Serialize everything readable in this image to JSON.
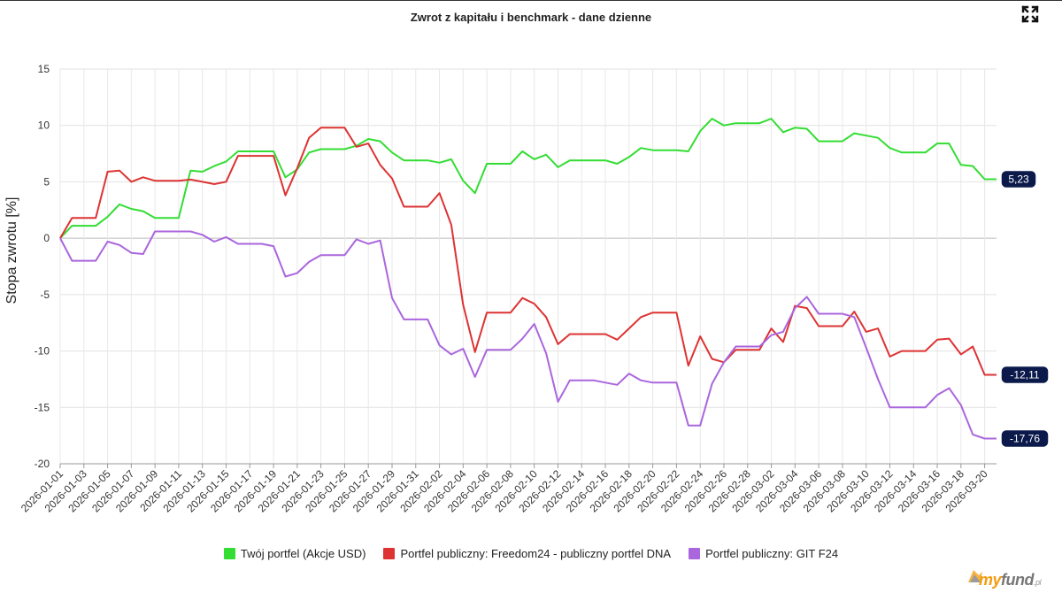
{
  "title": "Zwrot z kapitału i benchmark - dane dzienne",
  "brand": {
    "my": "my",
    "fund": "fund",
    "suffix": ".pl"
  },
  "chart_data": {
    "type": "line",
    "title": "Zwrot z kapitału i benchmark - dane dzienne",
    "ylabel": "Stopa zwrotu [%]",
    "xlabel": "",
    "ylim": [
      -20,
      15
    ],
    "yticks": [
      15,
      10,
      5,
      0,
      -5,
      -10,
      -15,
      -20
    ],
    "ytick_labels": [
      "15",
      "10",
      "5",
      "0",
      "-5",
      "-10",
      "-15",
      "-20"
    ],
    "grid": true,
    "legend_position": "bottom",
    "x_labels": [
      "2026-01-01",
      "2026-01-03",
      "2026-01-05",
      "2026-01-07",
      "2026-01-09",
      "2026-01-11",
      "2026-01-13",
      "2026-01-15",
      "2026-01-17",
      "2026-01-19",
      "2026-01-21",
      "2026-01-23",
      "2026-01-25",
      "2026-01-27",
      "2026-01-29",
      "2026-01-31",
      "2026-02-02",
      "2026-02-04",
      "2026-02-06",
      "2026-02-08",
      "2026-02-10",
      "2026-02-12",
      "2026-02-14",
      "2026-02-16",
      "2026-02-18",
      "2026-02-20",
      "2026-02-22",
      "2026-02-24",
      "2026-02-26",
      "2026-02-28",
      "2026-03-02",
      "2026-03-04",
      "2026-03-06",
      "2026-03-08",
      "2026-03-10",
      "2026-03-12",
      "2026-03-14",
      "2026-03-16",
      "2026-03-18",
      "2026-03-20"
    ],
    "x": [
      "2026-01-01",
      "2026-01-02",
      "2026-01-03",
      "2026-01-04",
      "2026-01-05",
      "2026-01-06",
      "2026-01-07",
      "2026-01-08",
      "2026-01-09",
      "2026-01-10",
      "2026-01-11",
      "2026-01-12",
      "2026-01-13",
      "2026-01-14",
      "2026-01-15",
      "2026-01-16",
      "2026-01-17",
      "2026-01-18",
      "2026-01-19",
      "2026-01-20",
      "2026-01-21",
      "2026-01-22",
      "2026-01-23",
      "2026-01-24",
      "2026-01-25",
      "2026-01-26",
      "2026-01-27",
      "2026-01-28",
      "2026-01-29",
      "2026-01-30",
      "2026-01-31",
      "2026-02-01",
      "2026-02-02",
      "2026-02-03",
      "2026-02-04",
      "2026-02-05",
      "2026-02-06",
      "2026-02-07",
      "2026-02-08",
      "2026-02-09",
      "2026-02-10",
      "2026-02-11",
      "2026-02-12",
      "2026-02-13",
      "2026-02-14",
      "2026-02-15",
      "2026-02-16",
      "2026-02-17",
      "2026-02-18",
      "2026-02-19",
      "2026-02-20",
      "2026-02-21",
      "2026-02-22",
      "2026-02-23",
      "2026-02-24",
      "2026-02-25",
      "2026-02-26",
      "2026-02-27",
      "2026-02-28",
      "2026-03-01",
      "2026-03-02",
      "2026-03-03",
      "2026-03-04",
      "2026-03-05",
      "2026-03-06",
      "2026-03-07",
      "2026-03-08",
      "2026-03-09",
      "2026-03-10",
      "2026-03-11",
      "2026-03-12",
      "2026-03-13",
      "2026-03-14",
      "2026-03-15",
      "2026-03-16",
      "2026-03-17",
      "2026-03-18",
      "2026-03-19",
      "2026-03-20",
      "2026-03-21"
    ],
    "series": [
      {
        "name": "Twój portfel (Akcje USD)",
        "color": "#33dd33",
        "end_label": "5,23",
        "values": [
          0,
          1.1,
          1.1,
          1.1,
          1.9,
          3.0,
          2.6,
          2.4,
          1.8,
          1.8,
          1.8,
          6.0,
          5.9,
          6.4,
          6.8,
          7.7,
          7.7,
          7.7,
          7.7,
          5.4,
          6.1,
          7.6,
          7.9,
          7.9,
          7.9,
          8.2,
          8.8,
          8.6,
          7.6,
          6.9,
          6.9,
          6.9,
          6.7,
          7.0,
          5.1,
          4.0,
          6.6,
          6.6,
          6.6,
          7.7,
          7.0,
          7.4,
          6.3,
          6.9,
          6.9,
          6.9,
          6.9,
          6.6,
          7.2,
          8.0,
          7.8,
          7.8,
          7.8,
          7.7,
          9.5,
          10.6,
          10.0,
          10.2,
          10.2,
          10.2,
          10.6,
          9.4,
          9.8,
          9.7,
          8.6,
          8.6,
          8.6,
          9.3,
          9.1,
          8.9,
          8.0,
          7.6,
          7.6,
          7.6,
          8.4,
          8.4,
          6.5,
          6.4,
          5.23,
          5.23
        ]
      },
      {
        "name": "Portfel publiczny: Freedom24 - publiczny portfel DNA",
        "color": "#dd3333",
        "end_label": "-12,11",
        "values": [
          0,
          1.8,
          1.8,
          1.8,
          5.9,
          6.0,
          5.0,
          5.4,
          5.1,
          5.1,
          5.1,
          5.2,
          5.0,
          4.8,
          5.0,
          7.3,
          7.3,
          7.3,
          7.3,
          3.8,
          6.2,
          8.9,
          9.8,
          9.8,
          9.8,
          8.1,
          8.4,
          6.5,
          5.3,
          2.8,
          2.8,
          2.8,
          4.0,
          1.2,
          -5.9,
          -10.1,
          -6.6,
          -6.6,
          -6.6,
          -5.3,
          -5.8,
          -7.0,
          -9.4,
          -8.5,
          -8.5,
          -8.5,
          -8.5,
          -9.0,
          -8.0,
          -7.0,
          -6.6,
          -6.6,
          -6.6,
          -11.3,
          -8.7,
          -10.7,
          -11.0,
          -9.9,
          -9.9,
          -9.9,
          -8.0,
          -9.2,
          -6.0,
          -6.2,
          -7.8,
          -7.8,
          -7.8,
          -6.5,
          -8.3,
          -8.0,
          -10.5,
          -10.0,
          -10.0,
          -10.0,
          -9.0,
          -8.9,
          -10.3,
          -9.6,
          -12.11,
          -12.11
        ]
      },
      {
        "name": "Portfel publiczny: GIT F24",
        "color": "#aa66dd",
        "end_label": "-17,76",
        "values": [
          0,
          -2.0,
          -2.0,
          -2.0,
          -0.3,
          -0.6,
          -1.3,
          -1.4,
          0.6,
          0.6,
          0.6,
          0.6,
          0.3,
          -0.3,
          0.1,
          -0.5,
          -0.5,
          -0.5,
          -0.7,
          -3.4,
          -3.1,
          -2.1,
          -1.5,
          -1.5,
          -1.5,
          -0.1,
          -0.5,
          -0.2,
          -5.3,
          -7.2,
          -7.2,
          -7.2,
          -9.5,
          -10.3,
          -9.8,
          -12.3,
          -9.9,
          -9.9,
          -9.9,
          -8.9,
          -7.6,
          -10.2,
          -14.5,
          -12.6,
          -12.6,
          -12.6,
          -12.8,
          -13.0,
          -12.0,
          -12.6,
          -12.8,
          -12.8,
          -12.8,
          -16.6,
          -16.6,
          -12.9,
          -11.0,
          -9.6,
          -9.6,
          -9.6,
          -8.6,
          -8.3,
          -6.2,
          -5.2,
          -6.7,
          -6.7,
          -6.7,
          -7.0,
          -9.7,
          -12.5,
          -15.0,
          -15.0,
          -15.0,
          -15.0,
          -13.9,
          -13.3,
          -14.8,
          -17.4,
          -17.76,
          -17.76
        ]
      }
    ]
  }
}
